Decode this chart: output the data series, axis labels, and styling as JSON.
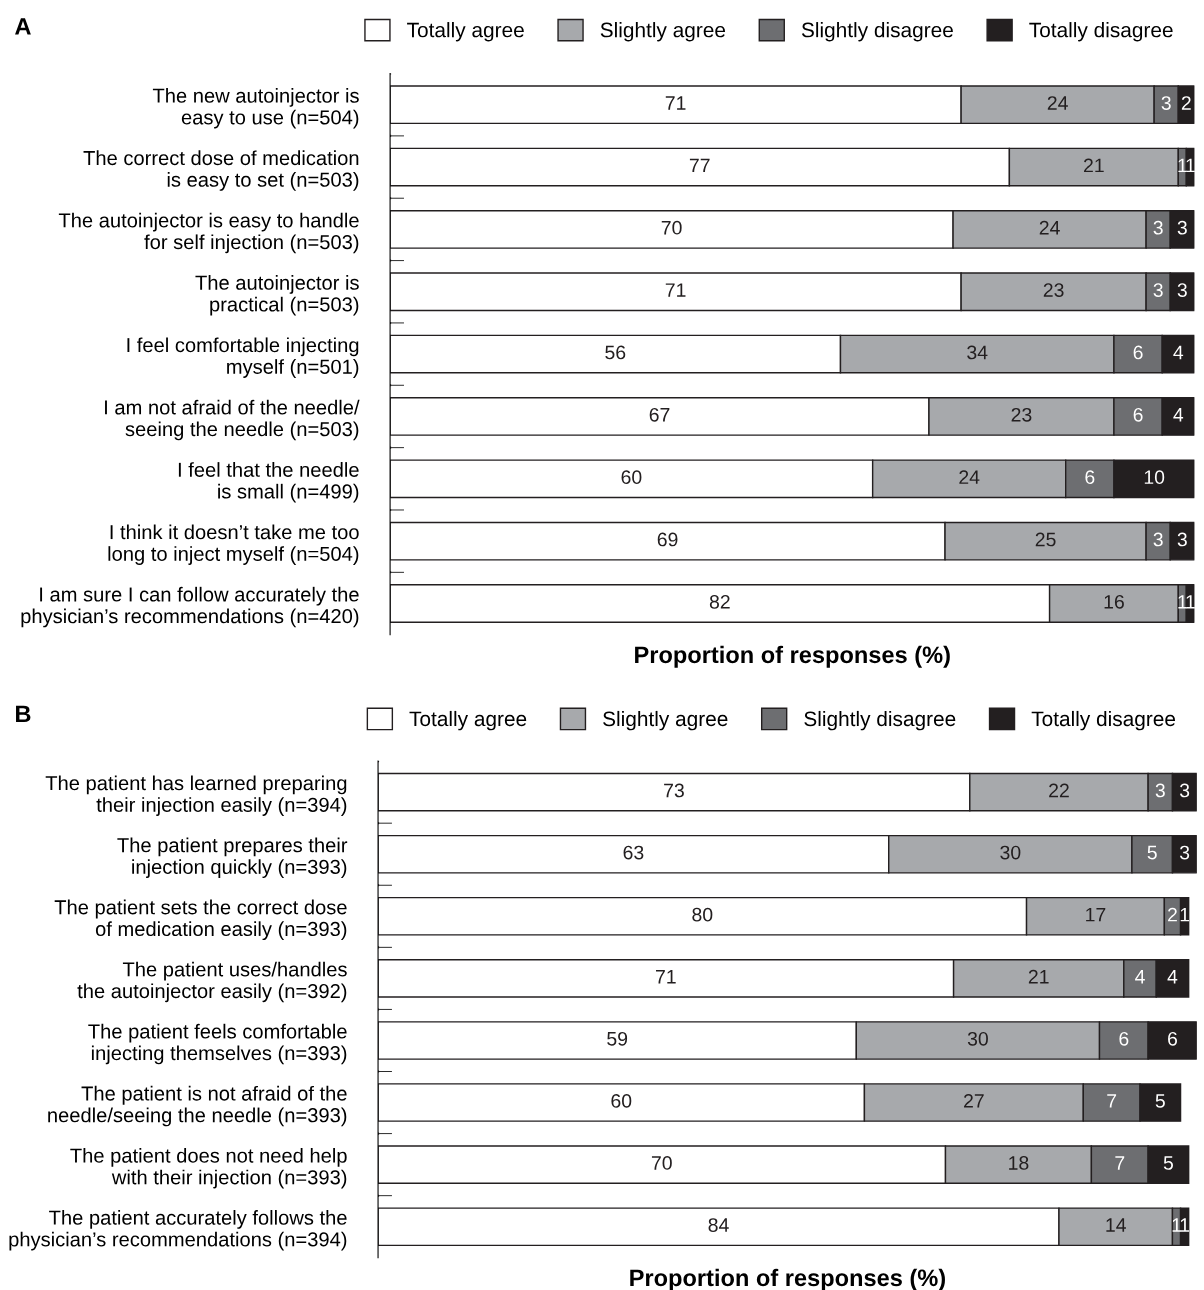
{
  "chart_data": [
    {
      "type": "bar",
      "title": "A",
      "orientation": "horizontal",
      "stacked": true,
      "data_labels": true,
      "legend": "top right",
      "grid": false,
      "xlabel": "Proportion of responses (%)",
      "categories": [
        "The new autoinjector is\neasy to use (n=504)",
        "The correct dose of medication\nis easy to set (n=503)",
        "The autoinjector is easy to handle\nfor self injection (n=503)",
        "The autoinjector is\npractical (n=503)",
        "I feel comfortable injecting\nmyself (n=501)",
        "I am not afraid of the needle/\nseeing the needle (n=503)",
        "I feel that the needle\nis small (n=499)",
        "I think it doesn’t take me too\nlong to inject myself (n=504)",
        "I am sure I can follow accurately the\nphysician’s recommendations (n=420)"
      ],
      "series": [
        {
          "name": "Totally agree",
          "color": "#ffffff",
          "values": [
            71,
            77,
            70,
            71,
            56,
            67,
            60,
            69,
            82
          ]
        },
        {
          "name": "Slightly agree",
          "color": "#a7a9ac",
          "values": [
            24,
            21,
            24,
            23,
            34,
            23,
            24,
            25,
            16
          ]
        },
        {
          "name": "Slightly disagree",
          "color": "#6d6e71",
          "values": [
            3,
            1,
            3,
            3,
            6,
            6,
            6,
            3,
            1
          ]
        },
        {
          "name": "Totally disagree",
          "color": "#231f20",
          "values": [
            2,
            1,
            3,
            3,
            4,
            4,
            10,
            3,
            1
          ]
        }
      ]
    },
    {
      "type": "bar",
      "title": "B",
      "orientation": "horizontal",
      "stacked": true,
      "data_labels": true,
      "legend": "top right",
      "grid": false,
      "xlabel": "Proportion of responses (%)",
      "categories": [
        "The patient has learned preparing\ntheir injection easily (n=394)",
        "The patient prepares their\ninjection quickly (n=393)",
        "The patient sets the correct dose\nof medication easily (n=393)",
        "The patient uses/handles\nthe autoinjector easily (n=392)",
        "The patient feels comfortable\ninjecting themselves (n=393)",
        "The patient is not afraid of the\nneedle/seeing the needle (n=393)",
        "The patient does not need help\nwith their injection (n=393)",
        "The patient accurately follows the\nphysician’s recommendations (n=394)"
      ],
      "series": [
        {
          "name": "Totally agree",
          "color": "#ffffff",
          "values": [
            73,
            63,
            80,
            71,
            59,
            60,
            70,
            84
          ]
        },
        {
          "name": "Slightly agree",
          "color": "#a7a9ac",
          "values": [
            22,
            30,
            17,
            21,
            30,
            27,
            18,
            14
          ]
        },
        {
          "name": "Slightly disagree",
          "color": "#6d6e71",
          "values": [
            3,
            5,
            2,
            4,
            6,
            7,
            7,
            1
          ]
        },
        {
          "name": "Totally disagree",
          "color": "#231f20",
          "values": [
            3,
            3,
            1,
            4,
            6,
            5,
            5,
            1
          ]
        }
      ]
    }
  ]
}
